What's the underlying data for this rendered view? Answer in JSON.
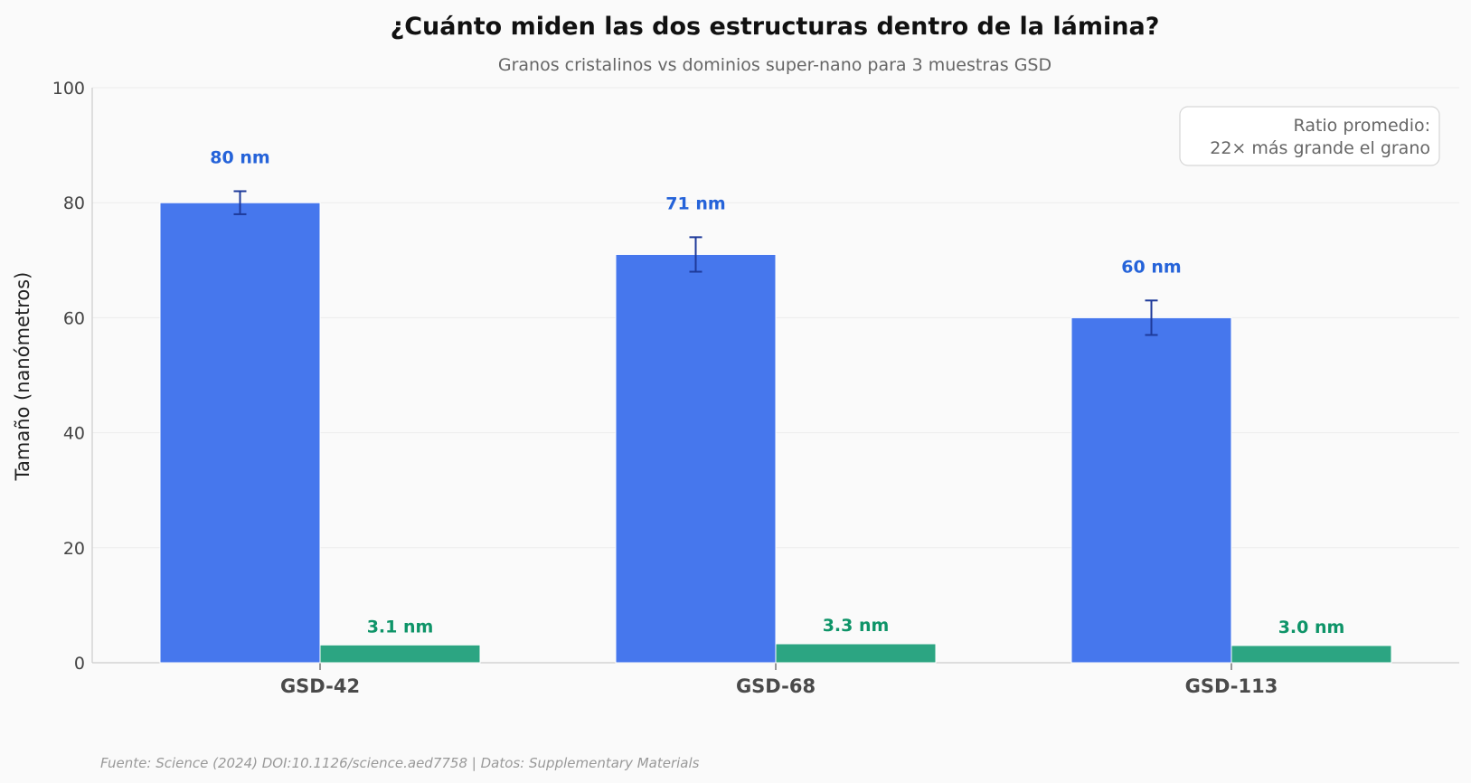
{
  "chart_data": {
    "type": "bar",
    "title": "¿Cuánto miden las dos estructuras dentro de la lámina?",
    "subtitle": "Granos cristalinos vs dominios super-nano para 3 muestras GSD",
    "ylabel": "Tamaño (nanómetros)",
    "xlabel": "",
    "ylim": [
      0,
      100
    ],
    "yticks": [
      0,
      20,
      40,
      60,
      80,
      100
    ],
    "categories": [
      "GSD-42",
      "GSD-68",
      "GSD-113"
    ],
    "series": [
      {
        "values": [
          80,
          71,
          60
        ],
        "errors": [
          2,
          3,
          3
        ],
        "labels": [
          "80 nm",
          "71 nm",
          "60 nm"
        ],
        "color": "#4677ed",
        "label_color": "#2563d9",
        "error_color": "#1e3a9a"
      },
      {
        "values": [
          3.1,
          3.3,
          3.0
        ],
        "labels": [
          "3.1 nm",
          "3.3 nm",
          "3.0 nm"
        ],
        "color": "#2ca582",
        "label_color": "#0e9468"
      }
    ],
    "annotation": [
      "Ratio promedio:",
      "22× más grande el grano"
    ],
    "grid": true,
    "legend": "none"
  },
  "source": "Fuente: Science (2024) DOI:10.1126/science.aed7758 | Datos: Supplementary Materials"
}
